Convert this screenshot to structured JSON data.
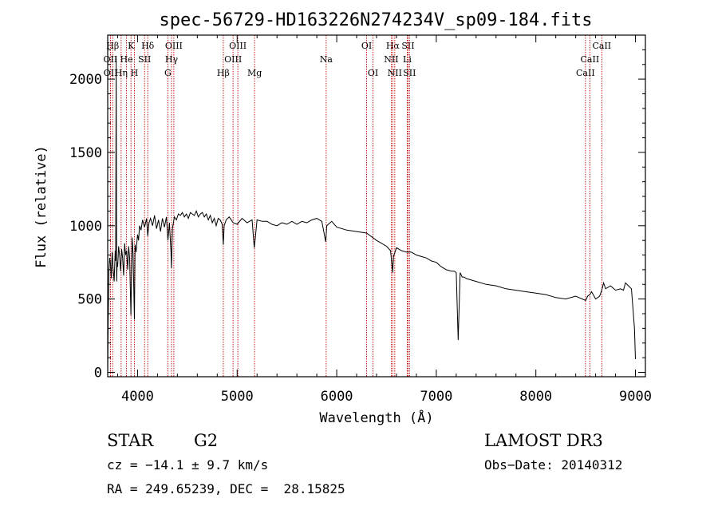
{
  "chart_data": {
    "type": "line",
    "title": "spec-56729-HD163226N274234V_sp09-184.fits",
    "xlabel": "Wavelength (Å)",
    "ylabel": "Flux (relative)",
    "xlim": [
      3700,
      9100
    ],
    "ylim": [
      -30,
      2300
    ],
    "xticks": [
      4000,
      5000,
      6000,
      7000,
      8000,
      9000
    ],
    "yticks": [
      0,
      500,
      1000,
      1500,
      2000
    ],
    "grid": false,
    "series": [
      {
        "name": "flux",
        "x": [
          3700,
          3705,
          3712,
          3720,
          3728,
          3735,
          3745,
          3755,
          3765,
          3775,
          3780,
          3785,
          3790,
          3795,
          3800,
          3810,
          3820,
          3830,
          3840,
          3850,
          3860,
          3870,
          3880,
          3890,
          3900,
          3910,
          3920,
          3933,
          3945,
          3955,
          3968,
          3975,
          3985,
          4000,
          4010,
          4020,
          4035,
          4050,
          4070,
          4090,
          4102,
          4115,
          4130,
          4150,
          4170,
          4190,
          4210,
          4230,
          4250,
          4270,
          4290,
          4305,
          4320,
          4335,
          4340,
          4350,
          4370,
          4390,
          4410,
          4430,
          4450,
          4470,
          4490,
          4510,
          4530,
          4550,
          4570,
          4590,
          4610,
          4630,
          4650,
          4670,
          4690,
          4710,
          4730,
          4750,
          4770,
          4790,
          4810,
          4830,
          4850,
          4861,
          4870,
          4890,
          4920,
          4960,
          5000,
          5050,
          5100,
          5150,
          5172,
          5183,
          5200,
          5250,
          5300,
          5350,
          5400,
          5450,
          5500,
          5550,
          5600,
          5650,
          5700,
          5750,
          5800,
          5850,
          5890,
          5896,
          5900,
          5950,
          6000,
          6100,
          6200,
          6300,
          6400,
          6500,
          6540,
          6563,
          6570,
          6600,
          6650,
          6700,
          6750,
          6800,
          6850,
          6900,
          6950,
          7000,
          7050,
          7100,
          7150,
          7180,
          7200,
          7220,
          7240,
          7260,
          7280,
          7300,
          7400,
          7500,
          7600,
          7700,
          7800,
          7900,
          8000,
          8100,
          8200,
          8300,
          8400,
          8500,
          8520,
          8542,
          8560,
          8600,
          8640,
          8662,
          8680,
          8700,
          8750,
          8800,
          8850,
          8880,
          8900,
          8930,
          8960,
          8990,
          9000
        ],
        "values": [
          0,
          340,
          690,
          780,
          740,
          640,
          820,
          700,
          620,
          830,
          760,
          2150,
          620,
          750,
          720,
          860,
          790,
          690,
          840,
          780,
          660,
          880,
          800,
          830,
          700,
          860,
          780,
          390,
          920,
          810,
          360,
          870,
          820,
          940,
          900,
          1000,
          970,
          1040,
          990,
          1050,
          930,
          1020,
          1050,
          1000,
          1070,
          980,
          1040,
          960,
          1050,
          990,
          1060,
          900,
          1020,
          820,
          710,
          980,
          1060,
          1040,
          1080,
          1070,
          1090,
          1060,
          1080,
          1050,
          1090,
          1080,
          1070,
          1100,
          1060,
          1080,
          1090,
          1060,
          1080,
          1040,
          1070,
          1020,
          1050,
          1000,
          1050,
          1040,
          1010,
          870,
          1000,
          1040,
          1060,
          1020,
          1010,
          1050,
          1020,
          1040,
          850,
          920,
          1040,
          1030,
          1030,
          1010,
          1000,
          1020,
          1010,
          1030,
          1010,
          1030,
          1020,
          1040,
          1050,
          1030,
          890,
          960,
          1000,
          1030,
          990,
          970,
          960,
          950,
          900,
          860,
          830,
          680,
          790,
          850,
          830,
          820,
          820,
          800,
          790,
          780,
          760,
          750,
          720,
          700,
          690,
          690,
          680,
          220,
          680,
          650,
          650,
          640,
          620,
          600,
          590,
          570,
          560,
          550,
          540,
          530,
          510,
          500,
          520,
          490,
          520,
          530,
          550,
          500,
          520,
          560,
          610,
          570,
          590,
          560,
          570,
          560,
          610,
          590,
          570,
          300,
          90
        ]
      }
    ],
    "lines": [
      {
        "name": "Hβ",
        "wave": 3750,
        "row": 0
      },
      {
        "name": "OII",
        "wave": 3727,
        "row": 1
      },
      {
        "name": "OII",
        "wave": 3729,
        "row": 2
      },
      {
        "name": "K",
        "wave": 3934,
        "row": 0
      },
      {
        "name": "He",
        "wave": 3889,
        "row": 1
      },
      {
        "name": "Hη",
        "wave": 3835,
        "row": 2
      },
      {
        "name": "H",
        "wave": 3968,
        "row": 2
      },
      {
        "name": "SII",
        "wave": 4070,
        "row": 1
      },
      {
        "name": "Hδ",
        "wave": 4102,
        "row": 0
      },
      {
        "name": "OIII",
        "wave": 4364,
        "row": 0
      },
      {
        "name": "Hγ",
        "wave": 4341,
        "row": 1
      },
      {
        "name": "G",
        "wave": 4304,
        "row": 2
      },
      {
        "name": "Hβ",
        "wave": 4861,
        "row": 2
      },
      {
        "name": "OIII",
        "wave": 5007,
        "row": 0
      },
      {
        "name": "OIII",
        "wave": 4959,
        "row": 1
      },
      {
        "name": "Mg",
        "wave": 5175,
        "row": 2
      },
      {
        "name": "Na",
        "wave": 5894,
        "row": 1
      },
      {
        "name": "OI",
        "wave": 6300,
        "row": 0
      },
      {
        "name": "OI",
        "wave": 6364,
        "row": 2
      },
      {
        "name": "Hα",
        "wave": 6563,
        "row": 0
      },
      {
        "name": "SII",
        "wave": 6716,
        "row": 0
      },
      {
        "name": "NII",
        "wave": 6548,
        "row": 1
      },
      {
        "name": "Li",
        "wave": 6708,
        "row": 1
      },
      {
        "name": "NII",
        "wave": 6583,
        "row": 2
      },
      {
        "name": "SII",
        "wave": 6731,
        "row": 2
      },
      {
        "name": "CaII",
        "wave": 8662,
        "row": 0
      },
      {
        "name": "CaII",
        "wave": 8542,
        "row": 1
      },
      {
        "name": "CaII",
        "wave": 8498,
        "row": 2
      }
    ],
    "line_color": "#c00000",
    "spectrum_color": "#000000"
  },
  "info": {
    "object_class": "STAR",
    "subclass": "G2",
    "survey": "LAMOST DR3",
    "cz": "cz = −14.1 ± 9.7 km/s",
    "obs_date": "Obs−Date: 20140312",
    "radec": "RA = 249.65239, DEC =  28.15825"
  }
}
